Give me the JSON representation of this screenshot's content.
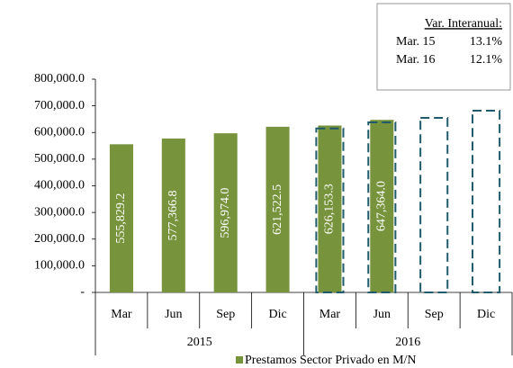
{
  "chart_data": {
    "type": "bar",
    "categories": [
      "Mar",
      "Jun",
      "Sep",
      "Dic",
      "Mar",
      "Jun",
      "Sep",
      "Dic"
    ],
    "groups": [
      "2015",
      "2016"
    ],
    "series": [
      {
        "name": "Prestamos Sector Privado en M/N",
        "color": "#77933c",
        "values": [
          555829.2,
          577366.8,
          596974.0,
          621522.5,
          626153.3,
          647364.0,
          null,
          null
        ],
        "value_labels": [
          "555,829.2",
          "577,366.8",
          "596,974.0",
          "621,522.5",
          "626,153.3",
          "647,364.0",
          null,
          null
        ]
      },
      {
        "color": "#1f5b6b",
        "style": "dashed",
        "values": [
          null,
          null,
          null,
          null,
          615000,
          638000,
          655000,
          682000
        ]
      }
    ],
    "ylim": [
      0,
      800000
    ],
    "yticks": [
      {
        "value": 0,
        "label": "-"
      },
      {
        "value": 100000,
        "label": "100,000.0"
      },
      {
        "value": 200000,
        "label": "200,000.0"
      },
      {
        "value": 300000,
        "label": "300,000.0"
      },
      {
        "value": 400000,
        "label": "400,000.0"
      },
      {
        "value": 500000,
        "label": "500,000.0"
      },
      {
        "value": 600000,
        "label": "600,000.0"
      },
      {
        "value": 700000,
        "label": "700,000.0"
      },
      {
        "value": 800000,
        "label": "800,000.0"
      }
    ],
    "grid": false,
    "legend": "bottom",
    "annotation": {
      "title": "Var. Interanual:",
      "rows": [
        [
          "Mar. 15",
          "13.1%"
        ],
        [
          "Mar. 16",
          "12.1%"
        ]
      ]
    }
  }
}
